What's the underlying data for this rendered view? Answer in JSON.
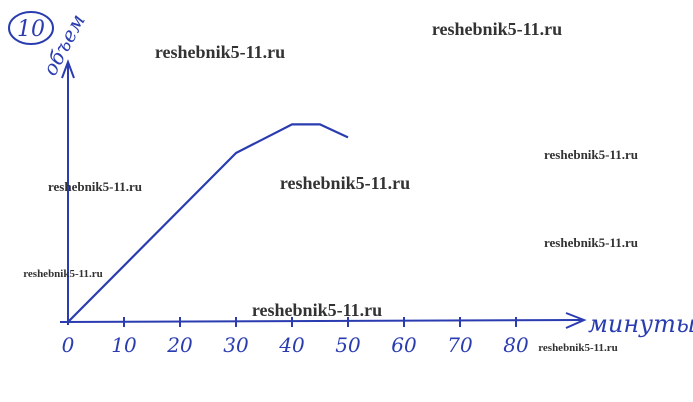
{
  "problem_number": "10",
  "chart_data": {
    "type": "line",
    "y_label": "объем",
    "x_label": "минуты",
    "x": [
      0,
      30,
      40,
      45,
      50
    ],
    "series": [
      {
        "values": [
          0,
          65,
          76,
          76,
          71
        ],
        "color": "#2a3cb0"
      }
    ],
    "xlim": [
      0,
      90
    ],
    "ylim": [
      0,
      100
    ],
    "xticks": [
      0,
      10,
      20,
      30,
      40,
      50,
      60,
      70,
      80
    ]
  },
  "watermarks": [
    "reshebnik5-11.ru",
    "reshebnik5-11.ru",
    "reshebnik5-11.ru",
    "reshebnik5-11.ru",
    "reshebnik5-11.ru",
    "reshebnik5-11.ru",
    "reshebnik5-11.ru",
    "reshebnik5-11.ru",
    "reshebnik5-11.ru"
  ]
}
